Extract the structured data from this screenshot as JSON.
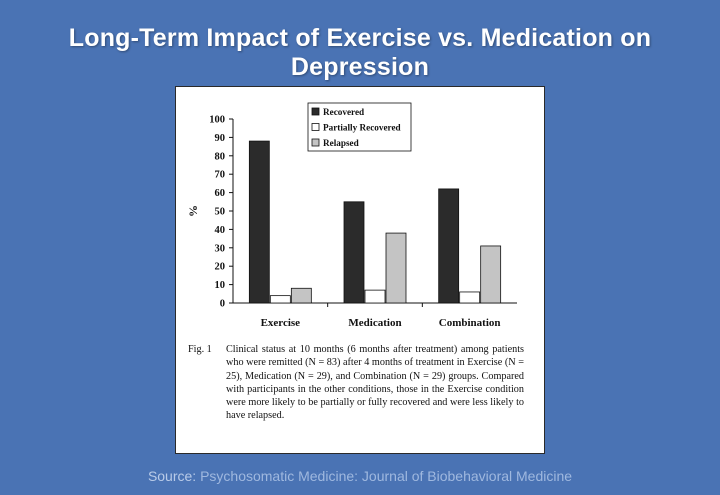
{
  "slide": {
    "title": "Long-Term Impact of Exercise vs. Medication on Depression",
    "source_label": "Source:",
    "source_text": "Psychosomatic Medicine: Journal of Biobehavioral Medicine"
  },
  "chart_data": {
    "type": "bar",
    "title": "",
    "ylabel": "%",
    "xlabel": "",
    "ylim": [
      0,
      100
    ],
    "yticks": [
      0,
      10,
      20,
      30,
      40,
      50,
      60,
      70,
      80,
      90,
      100
    ],
    "categories": [
      "Exercise",
      "Medication",
      "Combination"
    ],
    "series": [
      {
        "name": "Recovered",
        "values": [
          88,
          55,
          62
        ],
        "color": "#2b2b2b"
      },
      {
        "name": "Partially Recovered",
        "values": [
          4,
          7,
          6
        ],
        "color": "#ffffff"
      },
      {
        "name": "Relapsed",
        "values": [
          8,
          38,
          31
        ],
        "color": "#c4c4c4"
      }
    ],
    "legend_position": "top-right",
    "grid": false
  },
  "caption": {
    "label": "Fig. 1",
    "text": "Clinical status at 10 months (6 months after treatment) among patients who were remitted (N = 83) after 4 months of treatment in Exercise (N = 25), Medication (N = 29), and Combination (N = 29) groups. Compared with participants in the other conditions, those in the Exercise condition were more likely to be partially or fully recovered and were less likely to have relapsed."
  }
}
